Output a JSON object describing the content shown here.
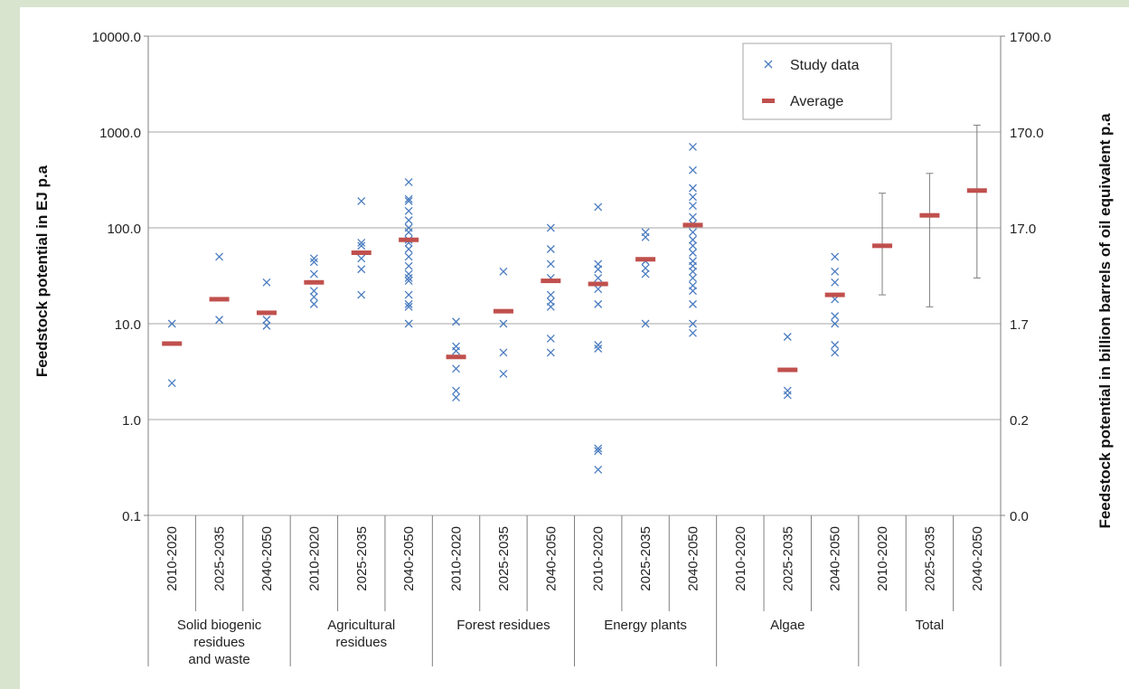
{
  "colors": {
    "background": "#d9e4cf",
    "panel": "#ffffff",
    "study_marker": "#4a7cc0",
    "average_marker": "#c0504d",
    "gridline": "#a6a6a6",
    "error_bar": "#7f7f7f"
  },
  "chart_data": {
    "type": "scatter",
    "title": "",
    "ylabel_left": "Feedstock potential in EJ p.a",
    "ylabel_right": "Feedstock potential in billion barrels of oil equivalent  p.a",
    "yscale": "log",
    "ylim": [
      0.1,
      10000
    ],
    "yticks_left": [
      "10000.0",
      "1000.0",
      "100.0",
      "10.0",
      "1.0",
      "0.1"
    ],
    "yticks_right": [
      "1700.0",
      "170.0",
      "17.0",
      "1.7",
      "0.2",
      "0.0"
    ],
    "grid": true,
    "legend_position": "top-right",
    "legend": {
      "study": "Study data",
      "average": "Average"
    },
    "periods": [
      "2010-2020",
      "2025-2035",
      "2040-2050"
    ],
    "groups": [
      {
        "label": "Solid biogenic residues and waste",
        "label_lines": [
          "Solid biogenic",
          "residues",
          "and waste"
        ],
        "periods": [
          {
            "period": "2010-2020",
            "study": [
              10,
              2.4
            ],
            "average": 6.2
          },
          {
            "period": "2025-2035",
            "study": [
              50,
              11
            ],
            "average": 18
          },
          {
            "period": "2040-2050",
            "study": [
              27,
              11,
              9.5
            ],
            "average": 13
          }
        ]
      },
      {
        "label": "Agricultural residues",
        "label_lines": [
          "Agricultural",
          "residues"
        ],
        "periods": [
          {
            "period": "2010-2020",
            "study": [
              48,
              44,
              33,
              22,
              19,
              16
            ],
            "average": 27
          },
          {
            "period": "2025-2035",
            "study": [
              190,
              70,
              65,
              48,
              37,
              20
            ],
            "average": 55
          },
          {
            "period": "2040-2050",
            "study": [
              300,
              200,
              190,
              150,
              120,
              100,
              90,
              75,
              70,
              60,
              50,
              40,
              33,
              30,
              28,
              20,
              16,
              15,
              10
            ],
            "average": 75
          }
        ]
      },
      {
        "label": "Forest residues",
        "label_lines": [
          "Forest residues"
        ],
        "periods": [
          {
            "period": "2010-2020",
            "study": [
              10.5,
              5.8,
              5.2,
              3.4,
              2.0,
              1.7
            ],
            "average": 4.5
          },
          {
            "period": "2025-2035",
            "study": [
              35,
              10,
              5,
              3
            ],
            "average": 13.5
          },
          {
            "period": "2040-2050",
            "study": [
              100,
              60,
              42,
              30,
              20,
              17,
              15,
              7,
              5
            ],
            "average": 28
          }
        ]
      },
      {
        "label": "Energy plants",
        "label_lines": [
          "Energy plants"
        ],
        "periods": [
          {
            "period": "2010-2020",
            "study": [
              165,
              42,
              37,
              30,
              23,
              16,
              6,
              5.5,
              0.5,
              0.47,
              0.3
            ],
            "average": 26
          },
          {
            "period": "2025-2035",
            "study": [
              90,
              80,
              45,
              38,
              33,
              10
            ],
            "average": 47
          },
          {
            "period": "2040-2050",
            "study": [
              700,
              400,
              260,
              210,
              170,
              130,
              110,
              90,
              75,
              65,
              55,
              45,
              40,
              35,
              30,
              25,
              22,
              16,
              10,
              8
            ],
            "average": 107
          }
        ]
      },
      {
        "label": "Algae",
        "label_lines": [
          "Algae"
        ],
        "periods": [
          {
            "period": "2010-2020",
            "study": [],
            "average": null
          },
          {
            "period": "2025-2035",
            "study": [
              7.3,
              2.0,
              1.8
            ],
            "average": 3.3
          },
          {
            "period": "2040-2050",
            "study": [
              50,
              35,
              27,
              18,
              12,
              10,
              6,
              5
            ],
            "average": 20
          }
        ]
      },
      {
        "label": "Total",
        "label_lines": [
          "Total"
        ],
        "periods": [
          {
            "period": "2010-2020",
            "study": [],
            "average": 65,
            "range": [
              20,
              230
            ]
          },
          {
            "period": "2025-2035",
            "study": [],
            "average": 135,
            "range": [
              15,
              370
            ]
          },
          {
            "period": "2040-2050",
            "study": [],
            "average": 245,
            "range": [
              30,
              1180
            ]
          }
        ]
      }
    ]
  }
}
